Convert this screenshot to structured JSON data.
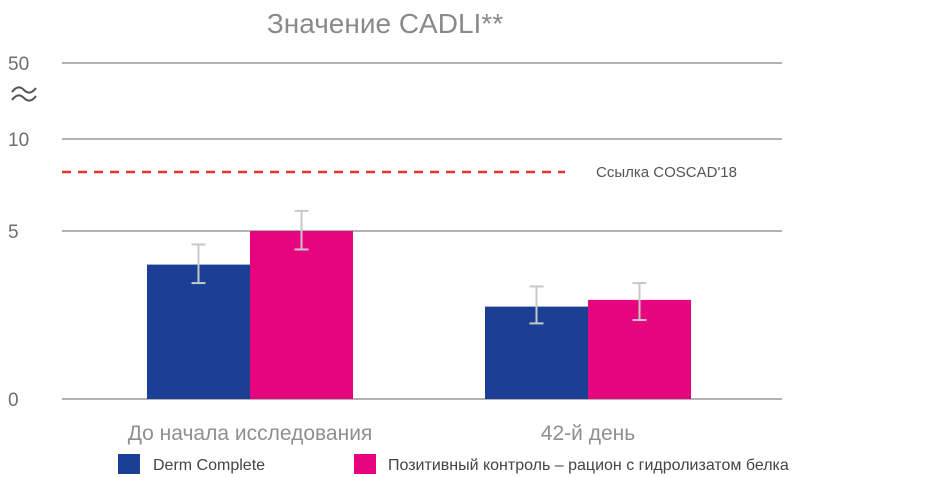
{
  "chart_data": {
    "type": "bar",
    "title": "Значение CADLI**",
    "categories": [
      "До начала исследования",
      "42-й день"
    ],
    "series": [
      {
        "name": "Derm Complete",
        "color": "#1a3f95",
        "values": [
          4.0,
          2.75
        ],
        "error": [
          [
            3.45,
            4.6
          ],
          [
            2.25,
            3.35
          ]
        ]
      },
      {
        "name": "Позитивный контроль – рацион с гидролизатом белка",
        "color": "#e6057e",
        "values": [
          5.0,
          2.95
        ],
        "error": [
          [
            4.45,
            5.6
          ],
          [
            2.35,
            3.45
          ]
        ]
      }
    ],
    "y_ticks": [
      "0",
      "5",
      "10",
      "50"
    ],
    "y_axis_break": "between 10 and 50",
    "reference_line": {
      "label": "Ссылка COSCAD'18",
      "color": "#e8322b",
      "style": "dashed"
    },
    "legend": "bottom",
    "grid": true
  }
}
